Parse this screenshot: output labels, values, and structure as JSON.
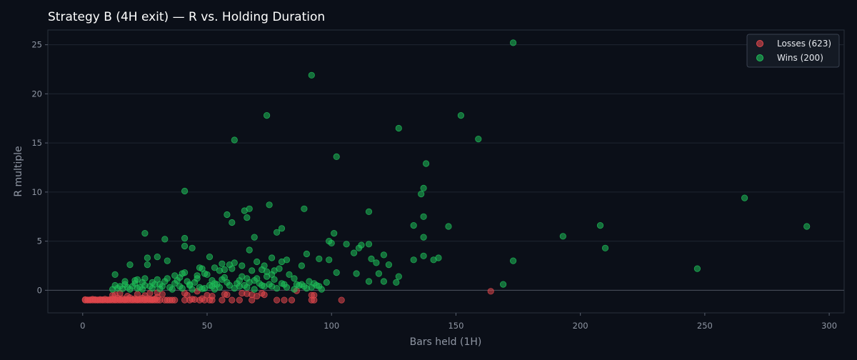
{
  "chart_data": {
    "type": "scatter",
    "title": "Strategy B (4H exit) — R vs. Holding Duration",
    "xlabel": "Bars held (1H)",
    "ylabel": "R multiple",
    "xlim": [
      -14,
      306
    ],
    "ylim": [
      -2.3,
      26.5
    ],
    "xticks": [
      0,
      50,
      100,
      150,
      200,
      250,
      300
    ],
    "yticks": [
      0,
      5,
      10,
      15,
      20,
      25
    ],
    "grid": "horizontal",
    "reference_line_y": 0,
    "legend_position": "top-right",
    "series": [
      {
        "name": "Losses (623)",
        "color": "#e0474c",
        "points": [
          [
            1,
            -1
          ],
          [
            1,
            -0.95
          ],
          [
            2,
            -1
          ],
          [
            2,
            -0.98
          ],
          [
            3,
            -1
          ],
          [
            3,
            -0.97
          ],
          [
            4,
            -1
          ],
          [
            4,
            -0.92
          ],
          [
            5,
            -1
          ],
          [
            5,
            -0.95
          ],
          [
            6,
            -1
          ],
          [
            6,
            -0.98
          ],
          [
            7,
            -1
          ],
          [
            7,
            -0.93
          ],
          [
            8,
            -1
          ],
          [
            8,
            -0.96
          ],
          [
            9,
            -1
          ],
          [
            9,
            -0.9
          ],
          [
            10,
            -1
          ],
          [
            10,
            -0.97
          ],
          [
            11,
            -1
          ],
          [
            11,
            -0.94
          ],
          [
            12,
            -1
          ],
          [
            12,
            -0.88
          ],
          [
            13,
            -1
          ],
          [
            13,
            -0.95
          ],
          [
            14,
            -1
          ],
          [
            14,
            -0.8
          ],
          [
            15,
            -1
          ],
          [
            15,
            -0.92
          ],
          [
            16,
            -1
          ],
          [
            16,
            -0.85
          ],
          [
            17,
            -1
          ],
          [
            17,
            -0.95
          ],
          [
            18,
            -1
          ],
          [
            18,
            -0.9
          ],
          [
            19,
            -1
          ],
          [
            19,
            -0.75
          ],
          [
            20,
            -1
          ],
          [
            20,
            -0.93
          ],
          [
            21,
            -1
          ],
          [
            21,
            -0.85
          ],
          [
            22,
            -1
          ],
          [
            22,
            -0.95
          ],
          [
            23,
            -1
          ],
          [
            23,
            -0.9
          ],
          [
            24,
            -1
          ],
          [
            24,
            -0.8
          ],
          [
            25,
            -1
          ],
          [
            25,
            -0.95
          ],
          [
            26,
            -1
          ],
          [
            26,
            -0.85
          ],
          [
            27,
            -1
          ],
          [
            27,
            -0.9
          ],
          [
            28,
            -1
          ],
          [
            28,
            -0.95
          ],
          [
            29,
            -1
          ],
          [
            29,
            -0.88
          ],
          [
            30,
            -1
          ],
          [
            30,
            -0.7
          ],
          [
            31,
            -1
          ],
          [
            32,
            -0.4
          ],
          [
            33,
            -1
          ],
          [
            34,
            -1
          ],
          [
            35,
            -1
          ],
          [
            36,
            -1
          ],
          [
            37,
            -1
          ],
          [
            12,
            -0.5
          ],
          [
            13,
            -0.45
          ],
          [
            15,
            -0.3
          ],
          [
            18,
            -0.6
          ],
          [
            22,
            -0.4
          ],
          [
            25,
            -0.55
          ],
          [
            27,
            -0.3
          ],
          [
            30,
            -0.25
          ],
          [
            41,
            -1
          ],
          [
            41,
            -0.3
          ],
          [
            42,
            -0.5
          ],
          [
            43,
            -1
          ],
          [
            44,
            -0.9
          ],
          [
            45,
            -0.95
          ],
          [
            46,
            -0.1
          ],
          [
            47,
            -1
          ],
          [
            48,
            -0.85
          ],
          [
            49,
            -1
          ],
          [
            50,
            -0.5
          ],
          [
            51,
            -1
          ],
          [
            52,
            -0.6
          ],
          [
            52,
            -1
          ],
          [
            56,
            -1
          ],
          [
            57,
            -0.4
          ],
          [
            58,
            -0.45
          ],
          [
            60,
            -1
          ],
          [
            63,
            -1
          ],
          [
            64,
            -0.3
          ],
          [
            66,
            -0.35
          ],
          [
            68,
            -1
          ],
          [
            68,
            -0.45
          ],
          [
            70,
            -0.6
          ],
          [
            72,
            -0.3
          ],
          [
            73,
            -0.45
          ],
          [
            78,
            -1
          ],
          [
            81,
            -1
          ],
          [
            84,
            -1
          ],
          [
            86,
            -0.05
          ],
          [
            92,
            -1
          ],
          [
            92,
            -0.5
          ],
          [
            93,
            -0.5
          ],
          [
            93,
            -1
          ],
          [
            104,
            -1
          ],
          [
            164,
            -0.1
          ]
        ]
      },
      {
        "name": "Wins (200)",
        "color": "#1fc05a",
        "points": [
          [
            173,
            25.2
          ],
          [
            92,
            21.9
          ],
          [
            74,
            17.8
          ],
          [
            152,
            17.8
          ],
          [
            127,
            16.5
          ],
          [
            61,
            15.3
          ],
          [
            159,
            15.4
          ],
          [
            102,
            13.6
          ],
          [
            138,
            12.9
          ],
          [
            137,
            10.4
          ],
          [
            41,
            10.1
          ],
          [
            136,
            9.8
          ],
          [
            266,
            9.4
          ],
          [
            75,
            8.7
          ],
          [
            67,
            8.3
          ],
          [
            65,
            8.1
          ],
          [
            89,
            8.3
          ],
          [
            58,
            7.7
          ],
          [
            115,
            8.0
          ],
          [
            66,
            7.4
          ],
          [
            137,
            7.5
          ],
          [
            60,
            6.9
          ],
          [
            133,
            6.6
          ],
          [
            147,
            6.5
          ],
          [
            208,
            6.6
          ],
          [
            291,
            6.5
          ],
          [
            80,
            6.3
          ],
          [
            78,
            5.9
          ],
          [
            25,
            5.8
          ],
          [
            101,
            5.8
          ],
          [
            69,
            5.4
          ],
          [
            137,
            5.4
          ],
          [
            193,
            5.5
          ],
          [
            33,
            5.2
          ],
          [
            41,
            5.3
          ],
          [
            99,
            5.0
          ],
          [
            100,
            4.8
          ],
          [
            106,
            4.7
          ],
          [
            111,
            4.3
          ],
          [
            112,
            4.6
          ],
          [
            115,
            4.7
          ],
          [
            210,
            4.3
          ],
          [
            41,
            4.5
          ],
          [
            44,
            4.3
          ],
          [
            67,
            4.1
          ],
          [
            109,
            3.8
          ],
          [
            116,
            3.2
          ],
          [
            121,
            3.6
          ],
          [
            90,
            3.7
          ],
          [
            26,
            3.3
          ],
          [
            30,
            3.4
          ],
          [
            34,
            3.0
          ],
          [
            51,
            3.4
          ],
          [
            95,
            3.2
          ],
          [
            99,
            3.1
          ],
          [
            133,
            3.1
          ],
          [
            137,
            3.5
          ],
          [
            141,
            3.1
          ],
          [
            143,
            3.3
          ],
          [
            173,
            3.0
          ],
          [
            118,
            2.8
          ],
          [
            123,
            2.6
          ],
          [
            56,
            2.7
          ],
          [
            59,
            2.6
          ],
          [
            61,
            2.8
          ],
          [
            70,
            2.9
          ],
          [
            73,
            2.5
          ],
          [
            76,
            3.3
          ],
          [
            80,
            2.9
          ],
          [
            82,
            3.1
          ],
          [
            88,
            2.5
          ],
          [
            19,
            2.6
          ],
          [
            26,
            2.6
          ],
          [
            47,
            2.3
          ],
          [
            48,
            2.2
          ],
          [
            53,
            2.3
          ],
          [
            55,
            2.0
          ],
          [
            57,
            2.1
          ],
          [
            60,
            2.2
          ],
          [
            64,
            2.5
          ],
          [
            68,
            2.0
          ],
          [
            72,
            2.1
          ],
          [
            74,
            1.9
          ],
          [
            77,
            2.0
          ],
          [
            79,
            2.2
          ],
          [
            247,
            2.2
          ],
          [
            13,
            1.6
          ],
          [
            37,
            1.5
          ],
          [
            40,
            1.7
          ],
          [
            41,
            1.8
          ],
          [
            46,
            1.5
          ],
          [
            49,
            1.7
          ],
          [
            50,
            1.6
          ],
          [
            57,
            1.3
          ],
          [
            64,
            1.4
          ],
          [
            66,
            1.2
          ],
          [
            69,
            1.0
          ],
          [
            74,
            1.4
          ],
          [
            76,
            1.6
          ],
          [
            83,
            1.6
          ],
          [
            85,
            1.2
          ],
          [
            102,
            1.8
          ],
          [
            110,
            1.7
          ],
          [
            119,
            1.7
          ],
          [
            127,
            1.4
          ],
          [
            17,
            0.9
          ],
          [
            21,
            1.0
          ],
          [
            22,
            1.1
          ],
          [
            25,
            1.2
          ],
          [
            30,
            1.1
          ],
          [
            34,
            1.2
          ],
          [
            38,
            1.0
          ],
          [
            42,
            0.9
          ],
          [
            45,
            0.8
          ],
          [
            53,
            0.7
          ],
          [
            58,
            0.8
          ],
          [
            67,
            0.8
          ],
          [
            71,
            0.7
          ],
          [
            75,
            0.6
          ],
          [
            80,
            0.7
          ],
          [
            88,
            0.6
          ],
          [
            91,
            0.9
          ],
          [
            98,
            0.8
          ],
          [
            115,
            0.9
          ],
          [
            121,
            0.9
          ],
          [
            126,
            0.8
          ],
          [
            169,
            0.6
          ],
          [
            13,
            0.5
          ],
          [
            15,
            0.4
          ],
          [
            18,
            0.3
          ],
          [
            20,
            0.4
          ],
          [
            23,
            0.3
          ],
          [
            25,
            0.5
          ],
          [
            27,
            0.4
          ],
          [
            29,
            0.6
          ],
          [
            32,
            0.4
          ],
          [
            35,
            0.3
          ],
          [
            39,
            0.4
          ],
          [
            43,
            0.5
          ],
          [
            47,
            0.3
          ],
          [
            49,
            0.2
          ],
          [
            52,
            0.4
          ],
          [
            55,
            0.3
          ],
          [
            59,
            0.5
          ],
          [
            63,
            0.4
          ],
          [
            66,
            0.3
          ],
          [
            72,
            0.5
          ],
          [
            76,
            0.4
          ],
          [
            81,
            0.6
          ],
          [
            87,
            0.5
          ],
          [
            89,
            0.4
          ],
          [
            92,
            0.3
          ],
          [
            93,
            0.7
          ],
          [
            94,
            0.5
          ],
          [
            12,
            0.1
          ],
          [
            14,
            0.2
          ],
          [
            16,
            0.15
          ],
          [
            19,
            0.1
          ],
          [
            22,
            0.2
          ],
          [
            24,
            0.1
          ],
          [
            28,
            0.2
          ],
          [
            31,
            0.15
          ],
          [
            36,
            0.1
          ],
          [
            40,
            0.2
          ],
          [
            44,
            0.1
          ],
          [
            48,
            0.15
          ],
          [
            53,
            0.1
          ],
          [
            61,
            0.2
          ],
          [
            69,
            0.1
          ],
          [
            78,
            0.2
          ],
          [
            85,
            0.1
          ],
          [
            90,
            0.2
          ],
          [
            96,
            0.1
          ],
          [
            28,
            0.8
          ],
          [
            31,
            0.6
          ],
          [
            37,
            0.7
          ],
          [
            43,
            0.6
          ],
          [
            51,
            0.5
          ],
          [
            54,
            0.6
          ],
          [
            62,
            0.7
          ],
          [
            65,
            0.5
          ],
          [
            73,
            0.4
          ],
          [
            82,
            0.3
          ],
          [
            86,
            0.6
          ],
          [
            95,
            0.4
          ],
          [
            17,
            0.6
          ],
          [
            21,
            0.7
          ],
          [
            24,
            0.8
          ],
          [
            33,
            0.9
          ],
          [
            39,
            1.3
          ],
          [
            46,
            1.2
          ],
          [
            52,
            1.0
          ],
          [
            56,
            1.1
          ],
          [
            63,
            1.0
          ],
          [
            70,
            1.2
          ],
          [
            77,
            1.1
          ]
        ]
      }
    ]
  }
}
